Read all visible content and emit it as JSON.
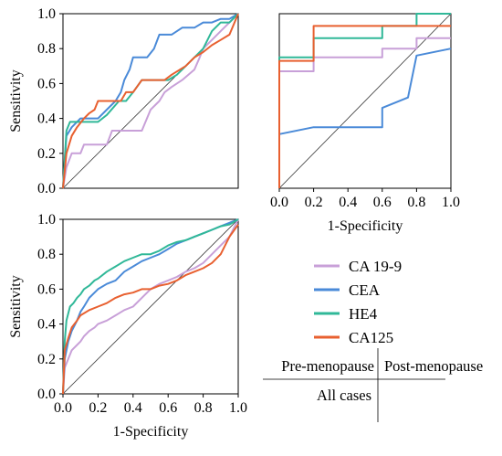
{
  "chart_data": [
    {
      "type": "line",
      "panel": "Pre-menopause",
      "xlabel": "",
      "ylabel": "Sensitivity",
      "xlim": [
        0,
        1
      ],
      "ylim": [
        0,
        1
      ],
      "xticks": [],
      "yticks": [
        "0.0",
        "0.2",
        "0.4",
        "0.6",
        "0.8",
        "1.0"
      ],
      "reference_diagonal": true,
      "series": [
        {
          "name": "CA 19-9",
          "color": "#c8a0d8",
          "x": [
            0,
            0.02,
            0.05,
            0.1,
            0.12,
            0.25,
            0.28,
            0.45,
            0.5,
            0.55,
            0.58,
            0.62,
            0.68,
            0.75,
            0.78,
            0.8,
            0.85,
            0.9,
            0.95,
            1.0
          ],
          "y": [
            0,
            0.12,
            0.2,
            0.2,
            0.25,
            0.25,
            0.33,
            0.33,
            0.45,
            0.5,
            0.55,
            0.58,
            0.62,
            0.68,
            0.75,
            0.8,
            0.85,
            0.9,
            0.95,
            1.0
          ]
        },
        {
          "name": "CEA",
          "color": "#4a8ad8",
          "x": [
            0,
            0.02,
            0.05,
            0.1,
            0.2,
            0.25,
            0.3,
            0.33,
            0.35,
            0.38,
            0.4,
            0.48,
            0.52,
            0.55,
            0.62,
            0.68,
            0.75,
            0.8,
            0.85,
            0.9,
            0.95,
            1.0
          ],
          "y": [
            0,
            0.3,
            0.35,
            0.4,
            0.4,
            0.45,
            0.5,
            0.55,
            0.62,
            0.68,
            0.75,
            0.75,
            0.8,
            0.88,
            0.88,
            0.92,
            0.92,
            0.95,
            0.95,
            0.97,
            0.97,
            1.0
          ]
        },
        {
          "name": "HE4",
          "color": "#30b898",
          "x": [
            0,
            0.02,
            0.04,
            0.2,
            0.25,
            0.32,
            0.36,
            0.4,
            0.45,
            0.55,
            0.6,
            0.65,
            0.7,
            0.75,
            0.8,
            0.85,
            0.9,
            0.95,
            1.0
          ],
          "y": [
            0,
            0.33,
            0.38,
            0.38,
            0.42,
            0.5,
            0.5,
            0.55,
            0.62,
            0.62,
            0.62,
            0.65,
            0.7,
            0.75,
            0.8,
            0.9,
            0.95,
            0.95,
            1.0
          ]
        },
        {
          "name": "CA125",
          "color": "#e86030",
          "x": [
            0,
            0.02,
            0.05,
            0.08,
            0.12,
            0.15,
            0.18,
            0.2,
            0.3,
            0.33,
            0.36,
            0.4,
            0.45,
            0.55,
            0.58,
            0.62,
            0.7,
            0.75,
            0.8,
            0.85,
            0.9,
            0.95,
            1.0
          ],
          "y": [
            0,
            0.2,
            0.3,
            0.35,
            0.4,
            0.43,
            0.45,
            0.5,
            0.5,
            0.5,
            0.55,
            0.55,
            0.62,
            0.62,
            0.62,
            0.65,
            0.7,
            0.75,
            0.78,
            0.82,
            0.85,
            0.88,
            1.0
          ]
        }
      ]
    },
    {
      "type": "line",
      "panel": "Post-menopause",
      "xlabel": "1-Specificity",
      "ylabel": "",
      "xlim": [
        0,
        1
      ],
      "ylim": [
        0,
        1
      ],
      "xticks": [
        "0.0",
        "0.2",
        "0.4",
        "0.6",
        "0.8",
        "1.0"
      ],
      "yticks": [],
      "reference_diagonal": true,
      "series": [
        {
          "name": "CA 19-9",
          "color": "#c8a0d8",
          "x": [
            0,
            0.0,
            0.2,
            0.2,
            0.6,
            0.6,
            0.8,
            0.8,
            1.0
          ],
          "y": [
            0,
            0.67,
            0.67,
            0.75,
            0.75,
            0.8,
            0.8,
            0.86,
            0.86
          ]
        },
        {
          "name": "CEA",
          "color": "#4a8ad8",
          "x": [
            0,
            0.0,
            0.2,
            0.2,
            0.6,
            0.6,
            0.75,
            0.75,
            0.8,
            0.8,
            1.0
          ],
          "y": [
            0,
            0.31,
            0.35,
            0.35,
            0.35,
            0.46,
            0.52,
            0.52,
            0.76,
            0.76,
            0.8
          ]
        },
        {
          "name": "HE4",
          "color": "#30b898",
          "x": [
            0,
            0.0,
            0.2,
            0.2,
            0.6,
            0.6,
            0.8,
            0.8,
            1.0
          ],
          "y": [
            0,
            0.75,
            0.75,
            0.86,
            0.86,
            0.93,
            0.93,
            1.0,
            1.0
          ]
        },
        {
          "name": "CA125",
          "color": "#e86030",
          "x": [
            0,
            0.0,
            0.2,
            0.2,
            1.0
          ],
          "y": [
            0,
            0.73,
            0.73,
            0.93,
            0.93
          ]
        }
      ]
    },
    {
      "type": "line",
      "panel": "All cases",
      "xlabel": "1-Specificity",
      "ylabel": "Sensitivity",
      "xlim": [
        0,
        1
      ],
      "ylim": [
        0,
        1
      ],
      "xticks": [
        "0.0",
        "0.2",
        "0.4",
        "0.6",
        "0.8",
        "1.0"
      ],
      "yticks": [
        "0.0",
        "0.2",
        "0.4",
        "0.6",
        "0.8",
        "1.0"
      ],
      "reference_diagonal": true,
      "series": [
        {
          "name": "CA 19-9",
          "color": "#c8a0d8",
          "x": [
            0,
            0.01,
            0.03,
            0.05,
            0.08,
            0.1,
            0.12,
            0.15,
            0.18,
            0.2,
            0.25,
            0.3,
            0.35,
            0.4,
            0.45,
            0.5,
            0.55,
            0.6,
            0.65,
            0.7,
            0.75,
            0.8,
            0.85,
            0.9,
            0.95,
            1.0
          ],
          "y": [
            0,
            0.15,
            0.2,
            0.25,
            0.28,
            0.3,
            0.33,
            0.36,
            0.38,
            0.4,
            0.42,
            0.45,
            0.48,
            0.5,
            0.55,
            0.6,
            0.63,
            0.65,
            0.67,
            0.7,
            0.72,
            0.75,
            0.8,
            0.85,
            0.9,
            1.0
          ]
        },
        {
          "name": "CEA",
          "color": "#4a8ad8",
          "x": [
            0,
            0.01,
            0.03,
            0.05,
            0.08,
            0.1,
            0.12,
            0.15,
            0.18,
            0.2,
            0.25,
            0.3,
            0.35,
            0.4,
            0.45,
            0.5,
            0.55,
            0.6,
            0.65,
            0.7,
            0.75,
            0.8,
            0.85,
            0.9,
            0.95,
            1.0
          ],
          "y": [
            0,
            0.2,
            0.3,
            0.36,
            0.42,
            0.47,
            0.5,
            0.55,
            0.58,
            0.6,
            0.63,
            0.65,
            0.7,
            0.73,
            0.76,
            0.78,
            0.8,
            0.83,
            0.86,
            0.88,
            0.9,
            0.92,
            0.94,
            0.96,
            0.98,
            1.0
          ]
        },
        {
          "name": "HE4",
          "color": "#30b898",
          "x": [
            0,
            0.01,
            0.02,
            0.04,
            0.06,
            0.08,
            0.1,
            0.12,
            0.15,
            0.18,
            0.2,
            0.25,
            0.3,
            0.35,
            0.4,
            0.45,
            0.5,
            0.55,
            0.6,
            0.65,
            0.7,
            0.75,
            0.8,
            0.85,
            0.9,
            0.95,
            1.0
          ],
          "y": [
            0,
            0.3,
            0.42,
            0.5,
            0.52,
            0.55,
            0.57,
            0.6,
            0.62,
            0.65,
            0.66,
            0.7,
            0.73,
            0.76,
            0.78,
            0.8,
            0.8,
            0.82,
            0.85,
            0.87,
            0.88,
            0.9,
            0.92,
            0.94,
            0.96,
            0.97,
            1.0
          ]
        },
        {
          "name": "CA125",
          "color": "#e86030",
          "x": [
            0,
            0.01,
            0.03,
            0.05,
            0.08,
            0.1,
            0.15,
            0.2,
            0.25,
            0.3,
            0.35,
            0.4,
            0.45,
            0.5,
            0.55,
            0.6,
            0.65,
            0.7,
            0.75,
            0.8,
            0.85,
            0.9,
            0.95,
            1.0
          ],
          "y": [
            0,
            0.25,
            0.32,
            0.38,
            0.42,
            0.45,
            0.48,
            0.5,
            0.52,
            0.55,
            0.57,
            0.58,
            0.6,
            0.6,
            0.62,
            0.63,
            0.65,
            0.68,
            0.7,
            0.72,
            0.75,
            0.8,
            0.9,
            0.97
          ]
        }
      ]
    }
  ],
  "legend": [
    {
      "label": "CA 19-9",
      "color": "#c8a0d8"
    },
    {
      "label": "CEA",
      "color": "#4a8ad8"
    },
    {
      "label": "HE4",
      "color": "#30b898"
    },
    {
      "label": "CA125",
      "color": "#e86030"
    }
  ],
  "layout_key": {
    "top_left": "Pre-menopause",
    "top_right": "Post-menopause",
    "bottom_left": "All cases"
  }
}
